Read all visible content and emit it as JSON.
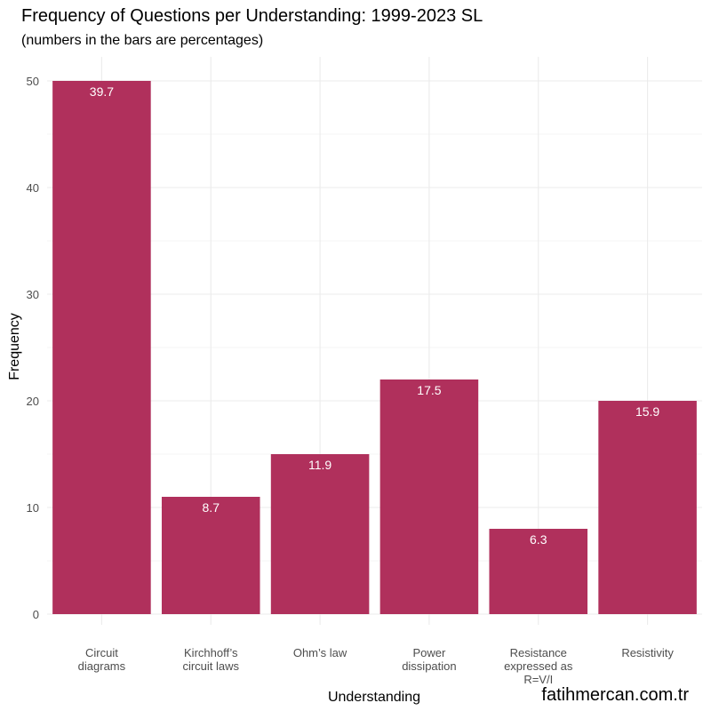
{
  "chart_data": {
    "type": "bar",
    "title": "Frequency of Questions per Understanding: 1999-2023 SL",
    "subtitle": "(numbers in the bars are percentages)",
    "xlabel": "Understanding",
    "ylabel": "Frequency",
    "caption": "fatihmercan.com.tr",
    "categories": [
      [
        "Circuit",
        "diagrams"
      ],
      [
        "Kirchhoff’s",
        "circuit laws"
      ],
      [
        "Ohm’s law"
      ],
      [
        "Power",
        "dissipation"
      ],
      [
        "Resistance",
        "expressed as",
        "R=V/I"
      ],
      [
        "Resistivity"
      ]
    ],
    "values": [
      50,
      11,
      15,
      22,
      8,
      20
    ],
    "bar_labels": [
      "39.7",
      "8.7",
      "11.9",
      "17.5",
      "6.3",
      "15.9"
    ],
    "yticks": [
      0,
      10,
      20,
      30,
      40,
      50
    ],
    "ylim": [
      0,
      52.5
    ],
    "grid": true,
    "colors": {
      "bar": "#b0305c",
      "grid_major": "#ebebeb",
      "grid_minor": "#f2f2f2"
    }
  }
}
